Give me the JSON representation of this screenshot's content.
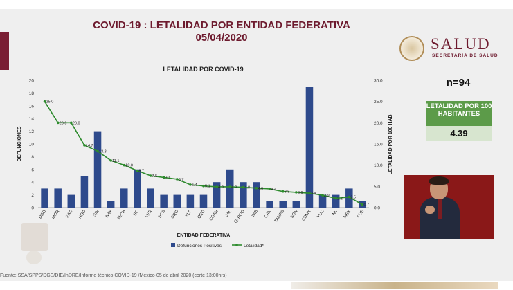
{
  "header": {
    "title_line1": "COVID-19 : LETALIDAD POR ENTIDAD FEDERATIVA",
    "title_line2": "05/04/2020"
  },
  "logo": {
    "name": "SALUD",
    "subtitle": "SECRETARÍA DE SALUD"
  },
  "summary": {
    "n_label": "n=94",
    "rate_label": "LETALIDAD POR 100 HABITANTES",
    "rate_value": "4.39"
  },
  "footer": {
    "source": "Fuente: SSA/SPPS/DGE/DIE/InDRE/Informe técnico.COVID-19 /Mexico-05 de abril 2020 (corte 13:00hrs)"
  },
  "colors": {
    "bar": "#2e4a8c",
    "line": "#2e8b2e",
    "accent": "#6d1a2e"
  },
  "chart_data": {
    "type": "bar",
    "title": "LETALIDAD POR COVID-19",
    "xlabel": "ENTIDAD FEDERATIVA",
    "ylabel": "DEFUNCIONES",
    "y2label": "LETALIDAD POR 100 HAB.",
    "ylim": [
      0,
      20
    ],
    "y2lim": [
      0,
      30
    ],
    "yticks": [
      "0",
      "2",
      "4",
      "6",
      "8",
      "10",
      "12",
      "14",
      "16",
      "18",
      "20"
    ],
    "y2ticks": [
      "0.0",
      "5.0",
      "10.0",
      "15.0",
      "20.0",
      "25.0",
      "30.0"
    ],
    "legend_position": "bottom",
    "grid": false,
    "categories": [
      "DGO",
      "MOR",
      "ZAC",
      "HGO",
      "SIN",
      "NAY",
      "MICH",
      "BC",
      "VER",
      "BCS",
      "GRO",
      "SLP",
      "QRO",
      "COAH",
      "JAL",
      "Q. ROO",
      "TAB",
      "OAX",
      "TAMPS",
      "SON",
      "CDMX",
      "YUC",
      "NL",
      "MEX",
      "PUE"
    ],
    "series": [
      {
        "name": "Defunciones Positivas",
        "type": "bar",
        "axis": "left",
        "values": [
          3,
          3,
          2,
          5,
          12,
          1,
          3,
          6,
          3,
          2,
          2,
          2,
          2,
          4,
          6,
          4,
          4,
          1,
          1,
          1,
          19,
          2,
          2,
          3,
          1
        ]
      },
      {
        "name": "Letalidad*",
        "type": "line",
        "axis": "right",
        "values": [
          25.0,
          20.0,
          20.0,
          14.7,
          13.3,
          11.1,
          10.0,
          8.7,
          7.5,
          7.1,
          6.7,
          5.4,
          5.1,
          4.9,
          4.9,
          4.8,
          4.6,
          4.4,
          3.8,
          3.6,
          3.4,
          2.9,
          2.2,
          2.5,
          0.7
        ],
        "labels": [
          "25.0",
          "20.0",
          "20.0",
          "14.7",
          "13.3",
          "11.1",
          "10.0",
          "8.7",
          "7.5",
          "7.1",
          "6.7",
          "5.4",
          "5.1",
          "4.9",
          "4.9",
          "4.8",
          "4.6",
          "4.4",
          "3.8",
          "3.6",
          "3.4",
          "2.9",
          "2.2",
          "2.5",
          "0.7"
        ]
      }
    ]
  }
}
